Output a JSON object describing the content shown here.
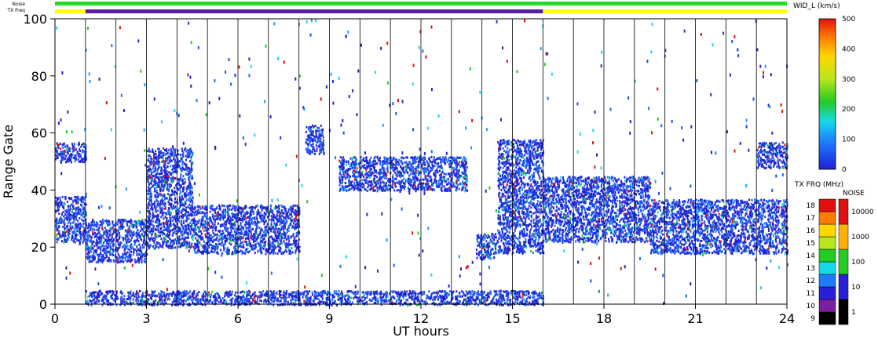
{
  "chart_data": {
    "type": "heatmap",
    "title": "",
    "xlabel": "UT hours",
    "ylabel": "Range Gate",
    "xlim": [
      0,
      24
    ],
    "ylim": [
      0,
      100
    ],
    "x_ticks": [
      "0",
      "3",
      "6",
      "9",
      "12",
      "15",
      "18",
      "21",
      "24"
    ],
    "y_ticks": [
      "0",
      "20",
      "40",
      "60",
      "80",
      "100"
    ],
    "grid": "vertical lines every hour",
    "strip_labels": {
      "noise": "Noise",
      "txfreq": "TX Freq"
    },
    "txfreq_strip": [
      {
        "start": 0,
        "end": 1,
        "color": "#ffff00"
      },
      {
        "start": 1,
        "end": 16,
        "color": "#5a1fa0"
      },
      {
        "start": 16,
        "end": 24,
        "color": "#ffff00"
      }
    ],
    "noise_strip": [
      {
        "start": 0,
        "end": 16,
        "color": "#22dd22"
      },
      {
        "start": 16,
        "end": 24,
        "color": "#22dd22"
      }
    ],
    "echo_regions": [
      {
        "x": [
          0,
          1
        ],
        "y": [
          22,
          38
        ],
        "width_class": "low"
      },
      {
        "x": [
          1,
          3
        ],
        "y": [
          15,
          30
        ],
        "width_class": "low"
      },
      {
        "x": [
          3,
          4.5
        ],
        "y": [
          20,
          55
        ],
        "width_class": "low"
      },
      {
        "x": [
          4.5,
          8
        ],
        "y": [
          18,
          35
        ],
        "width_class": "low"
      },
      {
        "x": [
          8.2,
          8.8
        ],
        "y": [
          53,
          63
        ],
        "width_class": "low"
      },
      {
        "x": [
          9.3,
          13.5
        ],
        "y": [
          40,
          52
        ],
        "width_class": "low"
      },
      {
        "x": [
          13.8,
          14.5
        ],
        "y": [
          16,
          25
        ],
        "width_class": "low"
      },
      {
        "x": [
          14.5,
          16
        ],
        "y": [
          18,
          58
        ],
        "width_class": "low"
      },
      {
        "x": [
          16,
          19.5
        ],
        "y": [
          22,
          45
        ],
        "width_class": "low"
      },
      {
        "x": [
          19.5,
          24
        ],
        "y": [
          18,
          37
        ],
        "width_class": "low"
      },
      {
        "x": [
          1,
          16
        ],
        "y": [
          0,
          5
        ],
        "width_class": "low"
      },
      {
        "x": [
          0,
          1
        ],
        "y": [
          50,
          57
        ],
        "width_class": "low"
      },
      {
        "x": [
          23,
          24
        ],
        "y": [
          48,
          57
        ],
        "width_class": "low"
      }
    ],
    "width_colorbar": {
      "label": "WID_L (km/s)",
      "ticks": [
        "0",
        "100",
        "200",
        "300",
        "400",
        "500"
      ],
      "range": [
        0,
        500
      ]
    },
    "txfreq_colorbar": {
      "label": "TX FRQ (MHz)",
      "ticks": [
        "9",
        "10",
        "11",
        "12",
        "13",
        "14",
        "15",
        "16",
        "17",
        "18"
      ],
      "colors": [
        "#000000",
        "#7a1fa0",
        "#2a1fd8",
        "#1e7bff",
        "#17d8e8",
        "#22cc22",
        "#b8e61a",
        "#ffd700",
        "#ff7a00",
        "#e01010"
      ]
    },
    "noise_colorbar": {
      "label": "NOISE",
      "ticks": [
        "1",
        "10",
        "100",
        "1000",
        "10000"
      ],
      "colors": [
        "#000000",
        "#2a1fd8",
        "#22cc22",
        "#ffb000",
        "#e01010"
      ]
    }
  }
}
